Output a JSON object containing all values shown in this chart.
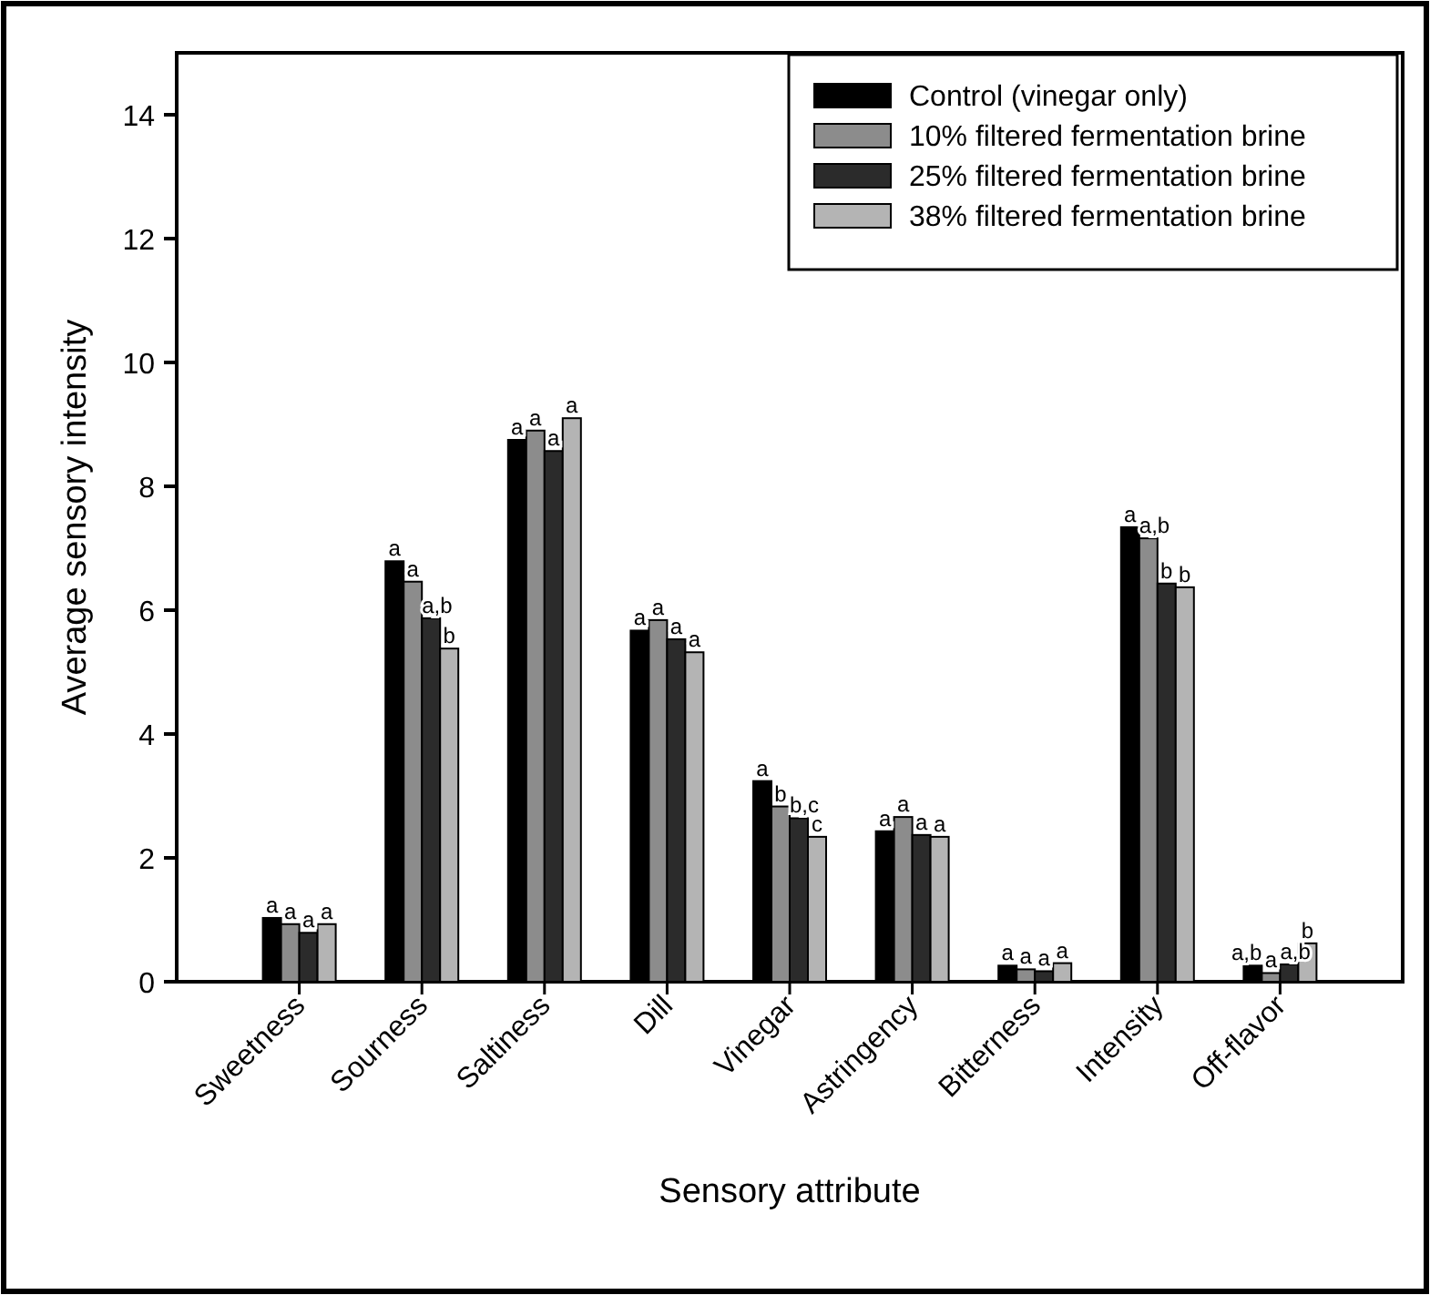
{
  "chart_data": {
    "type": "bar",
    "xlabel": "Sensory attribute",
    "ylabel": "Average sensory intensity",
    "categories": [
      "Sweetness",
      "Sourness",
      "Saltiness",
      "Dill",
      "Vinegar",
      "Astringency",
      "Bitterness",
      "Intensity",
      "Off-flavor"
    ],
    "series": [
      {
        "name": "Control (vinegar only)",
        "color": "#000000",
        "values": [
          1.03,
          6.79,
          8.75,
          5.67,
          3.24,
          2.43,
          0.26,
          7.34,
          0.26
        ],
        "value_labels": [
          "a",
          "a",
          "a",
          "a",
          "a",
          "a",
          "a",
          "a",
          "a,b"
        ]
      },
      {
        "name": "10% filtered fermentation brine",
        "color": "#8c8c8c",
        "values": [
          0.93,
          6.46,
          8.9,
          5.84,
          2.83,
          2.66,
          0.2,
          7.16,
          0.14
        ],
        "value_labels": [
          "a",
          "a",
          "a",
          "a",
          "b",
          "a",
          "a",
          "a,b",
          "a"
        ]
      },
      {
        "name": "25% filtered fermentation brine",
        "color": "#2b2b2b",
        "values": [
          0.79,
          5.87,
          8.57,
          5.53,
          2.64,
          2.37,
          0.17,
          6.43,
          0.28
        ],
        "value_labels": [
          "a",
          "a,b",
          "a",
          "a",
          "b,c",
          "a",
          "a",
          "b",
          "a,b"
        ]
      },
      {
        "name": "38% filtered fermentation brine",
        "color": "#b4b4b4",
        "values": [
          0.93,
          5.38,
          9.1,
          5.32,
          2.34,
          2.34,
          0.3,
          6.37,
          0.62
        ],
        "value_labels": [
          "a",
          "b",
          "a",
          "a",
          "c",
          "a",
          "a",
          "b",
          "b"
        ]
      }
    ],
    "ylim": [
      0,
      15
    ],
    "yticks": [
      0,
      2,
      4,
      6,
      8,
      10,
      12,
      14
    ],
    "grid": false,
    "legend": "top right"
  }
}
